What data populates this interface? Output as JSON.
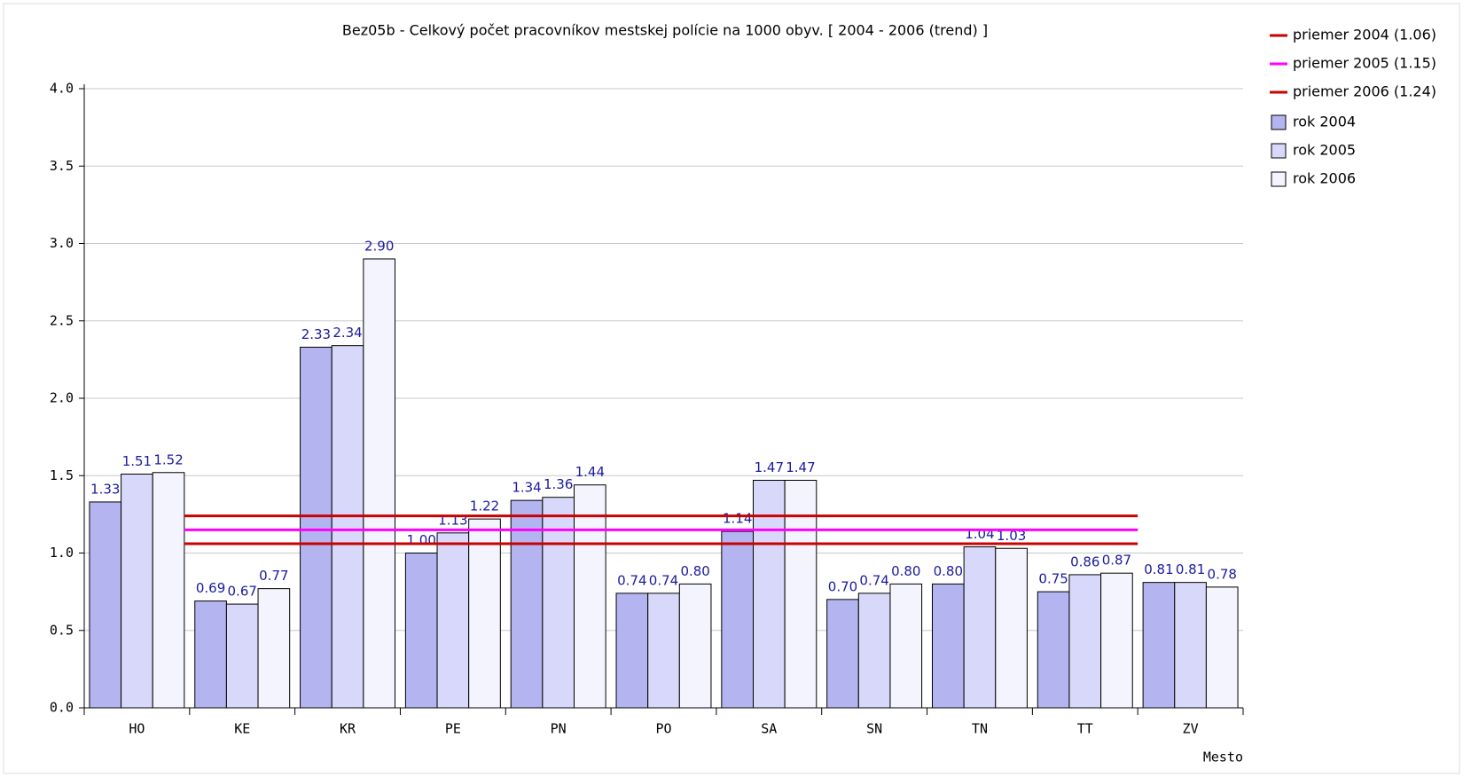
{
  "chart_data": {
    "type": "bar",
    "title": "Bez05b - Celkový počet pracovníkov mestskej polície na 1000 obyv. [ 2004 - 2006 (trend) ]",
    "x_label": "Mesto",
    "categories": [
      "HO",
      "KE",
      "KR",
      "PE",
      "PN",
      "PO",
      "SA",
      "SN",
      "TN",
      "TT",
      "ZV"
    ],
    "series": [
      {
        "name": "rok 2004",
        "color": "#b4b4f0",
        "values": [
          1.33,
          0.69,
          2.33,
          1.0,
          1.34,
          0.74,
          1.14,
          0.7,
          0.8,
          0.75,
          0.81
        ],
        "value_labels": [
          "1.33",
          "0.69",
          "2.33",
          "1.00",
          "1.34",
          "0.74",
          "1.14",
          "0.70",
          "0.80",
          "0.75",
          "0.81"
        ]
      },
      {
        "name": "rok 2005",
        "color": "#d8d8fa",
        "values": [
          1.51,
          0.67,
          2.34,
          1.13,
          1.36,
          0.74,
          1.47,
          0.74,
          1.04,
          0.86,
          0.81
        ],
        "value_labels": [
          "1.51",
          "0.67",
          "2.34",
          "1.13",
          "1.36",
          "0.74",
          "1.47",
          "0.74",
          "1.04",
          "0.86",
          "0.81"
        ]
      },
      {
        "name": "rok 2006",
        "color": "#f4f4ff",
        "values": [
          1.52,
          0.77,
          2.9,
          1.22,
          1.44,
          0.8,
          1.47,
          0.8,
          1.03,
          0.87,
          0.78
        ],
        "value_labels": [
          "1.52",
          "0.77",
          "2.90",
          "1.22",
          "1.44",
          "0.80",
          "1.47",
          "0.80",
          "1.03",
          "0.87",
          "0.78"
        ]
      }
    ],
    "averages": [
      {
        "name": "priemer 2004 (1.06)",
        "value": 1.06,
        "color": "#cc0000"
      },
      {
        "name": "priemer 2005 (1.15)",
        "value": 1.15,
        "color": "#ff00ff"
      },
      {
        "name": "priemer 2006 (1.24)",
        "value": 1.24,
        "color": "#cc0000"
      }
    ],
    "ylim": [
      0,
      4
    ],
    "yticks": [
      {
        "value": 0,
        "label": "0.0"
      },
      {
        "value": 0.5,
        "label": "0.5"
      },
      {
        "value": 1,
        "label": "1.0"
      },
      {
        "value": 1.5,
        "label": "1.5"
      },
      {
        "value": 2,
        "label": "2.0"
      },
      {
        "value": 2.5,
        "label": "2.5"
      },
      {
        "value": 3,
        "label": "3.0"
      },
      {
        "value": 3.5,
        "label": "3.5"
      },
      {
        "value": 4,
        "label": "4.0"
      }
    ],
    "grid": true
  }
}
